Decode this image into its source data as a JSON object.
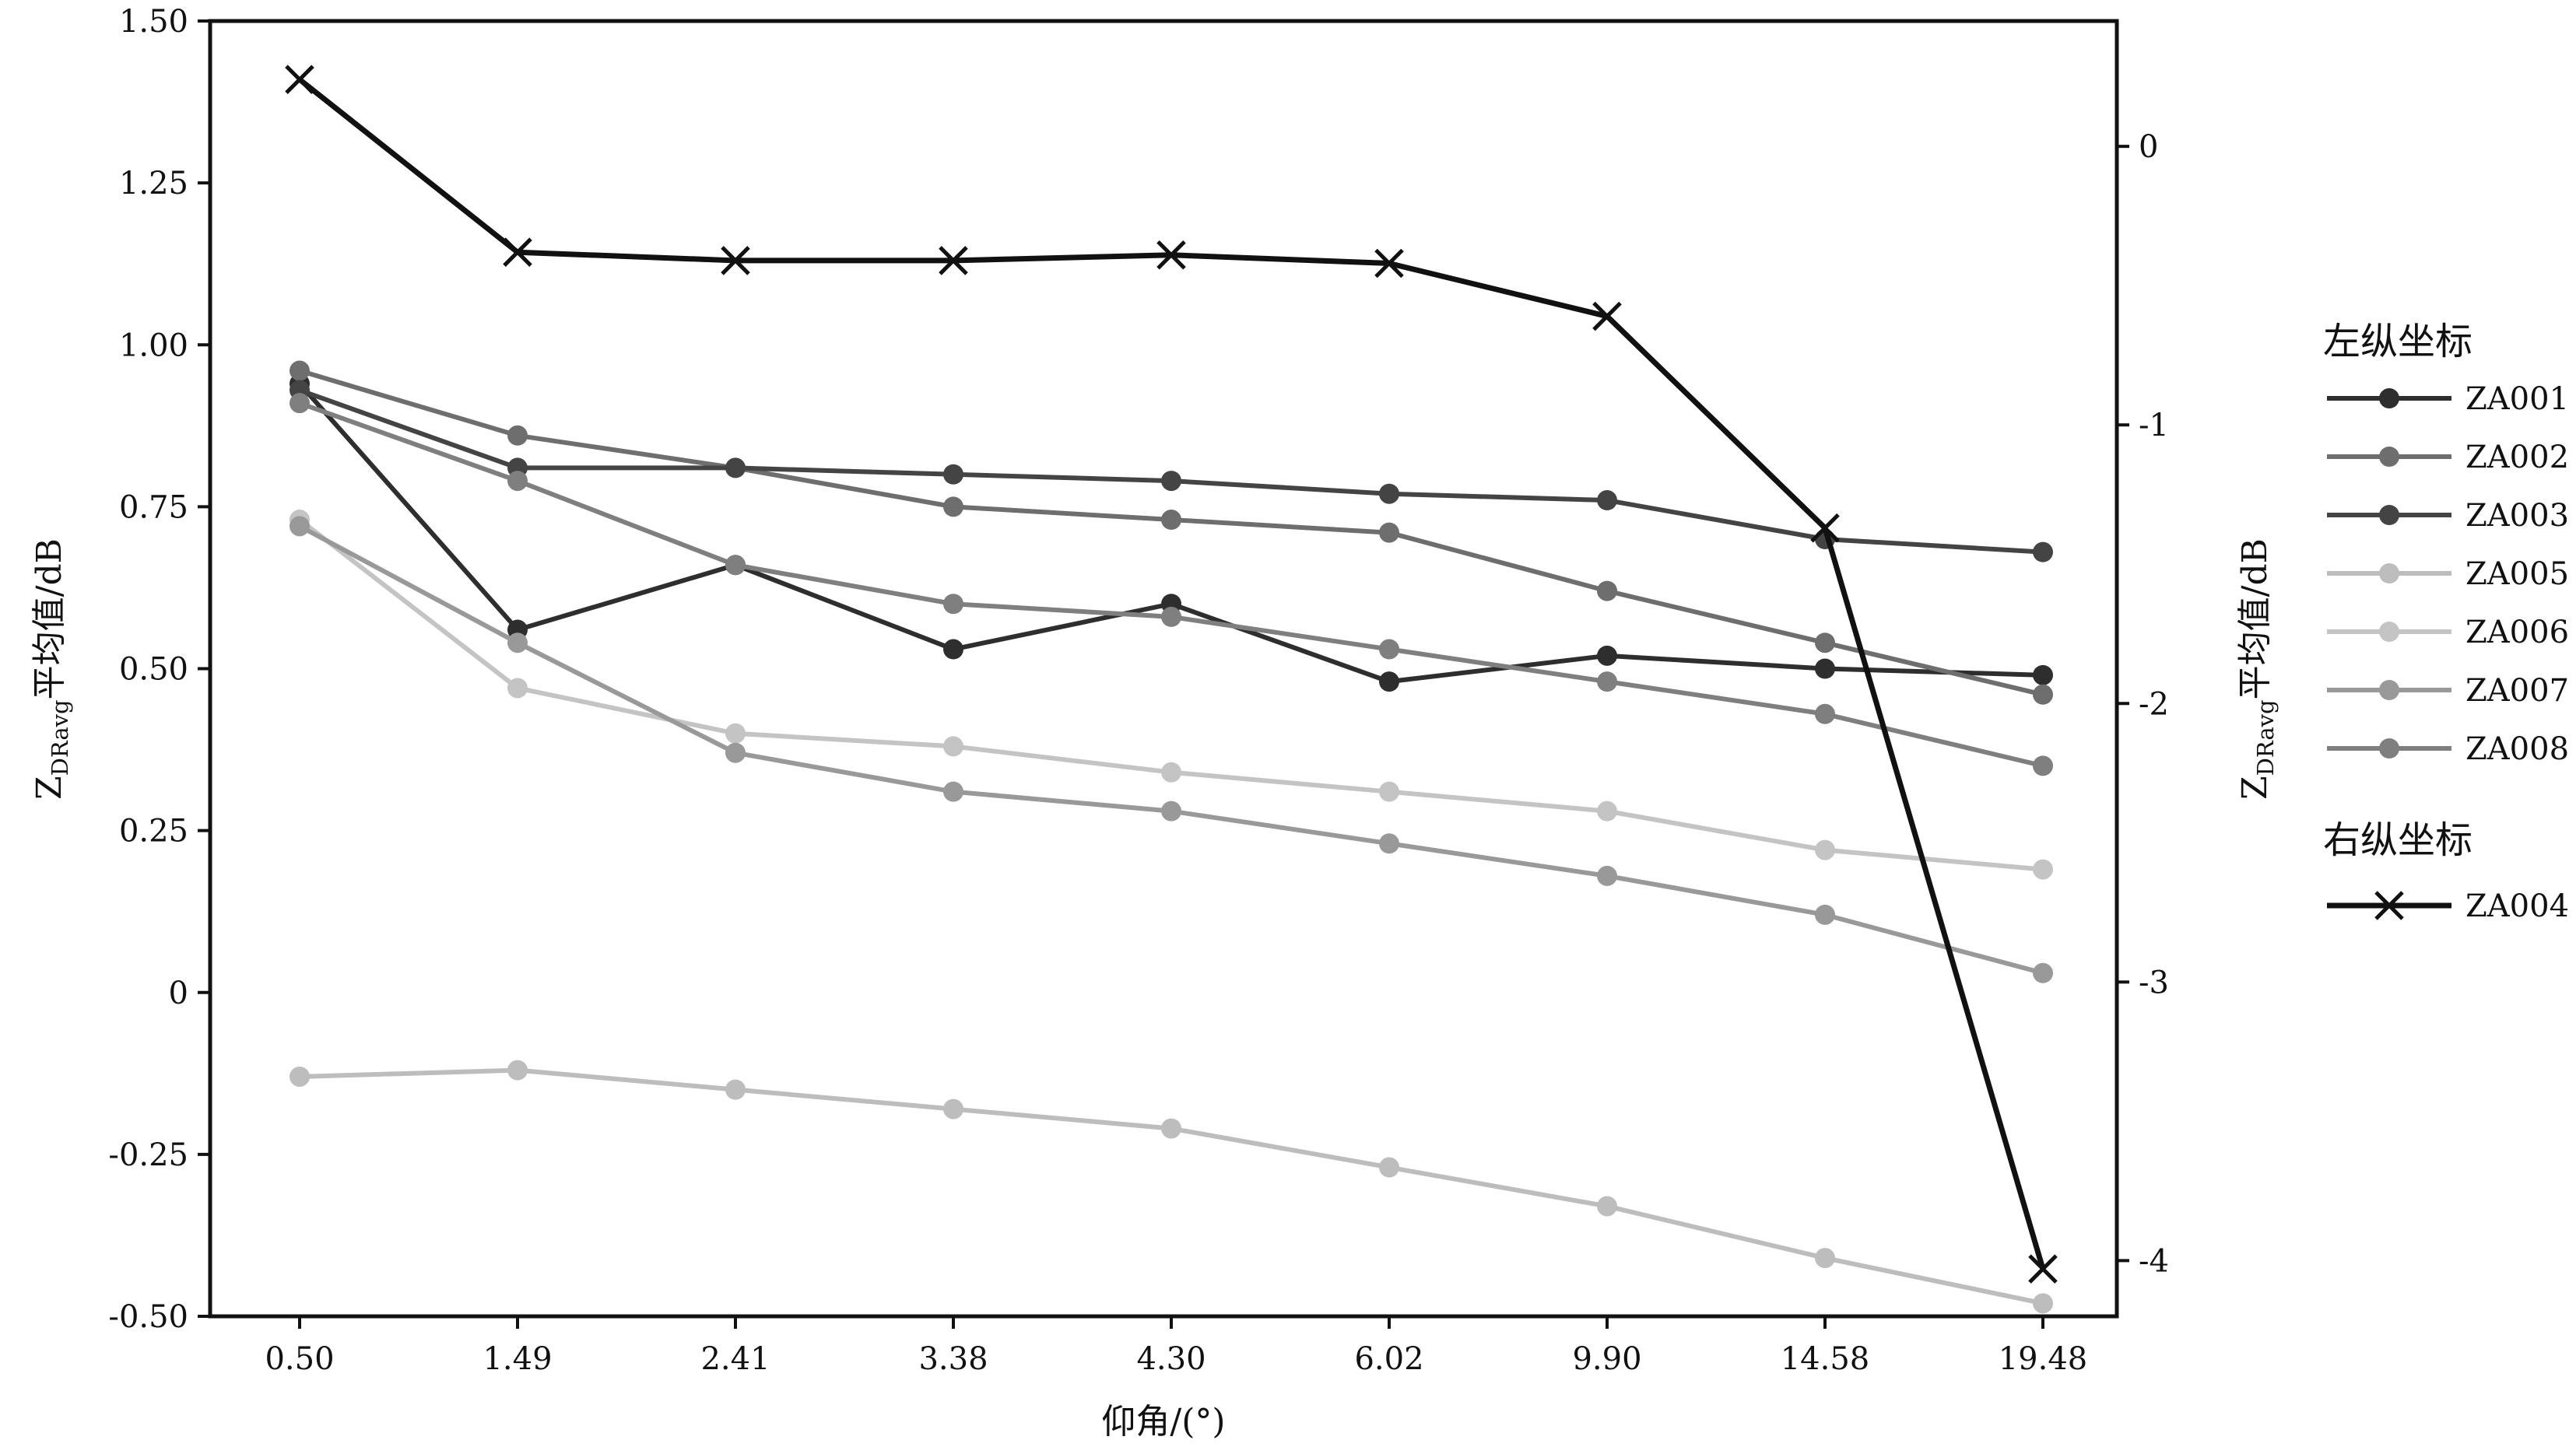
{
  "chart_data": {
    "type": "line",
    "categories": [
      "0.50",
      "1.49",
      "2.41",
      "3.38",
      "4.30",
      "6.02",
      "9.90",
      "14.58",
      "19.48"
    ],
    "xlabel": "仰角/(°)",
    "ylabel_left": {
      "main": "Z",
      "sub": "DRavg",
      "rest": "平均值/dB"
    },
    "ylabel_right": {
      "main": "Z",
      "sub": "DRavg",
      "rest": "平均值/dB"
    },
    "ylim_left": [
      -0.5,
      1.5
    ],
    "yticks_left": [
      {
        "v": 1.5,
        "t": "1.50"
      },
      {
        "v": 1.25,
        "t": "1.25"
      },
      {
        "v": 1.0,
        "t": "1.00"
      },
      {
        "v": 0.75,
        "t": "0.75"
      },
      {
        "v": 0.5,
        "t": "0.50"
      },
      {
        "v": 0.25,
        "t": "0.25"
      },
      {
        "v": 0,
        "t": "0"
      },
      {
        "v": -0.25,
        "t": "-0.25"
      },
      {
        "v": -0.5,
        "t": "-0.50"
      }
    ],
    "ylim_right": [
      -4.2,
      0.45
    ],
    "yticks_right": [
      {
        "v": 0,
        "t": "0"
      },
      {
        "v": -1,
        "t": "-1"
      },
      {
        "v": -2,
        "t": "-2"
      },
      {
        "v": -3,
        "t": "-3"
      },
      {
        "v": -4,
        "t": "-4"
      }
    ],
    "grid": false,
    "legend_position": "right",
    "legend": {
      "left_title": "左纵坐标",
      "right_title": "右纵坐标"
    },
    "series": [
      {
        "name": "ZA001",
        "axis": "left",
        "marker": "circle",
        "color": "#2e2e2e",
        "values": [
          0.94,
          0.56,
          0.66,
          0.53,
          0.6,
          0.48,
          0.52,
          0.5,
          0.49
        ]
      },
      {
        "name": "ZA002",
        "axis": "left",
        "marker": "circle",
        "color": "#6e6e6e",
        "values": [
          0.96,
          0.86,
          0.81,
          0.75,
          0.73,
          0.71,
          0.62,
          0.54,
          0.46
        ]
      },
      {
        "name": "ZA003",
        "axis": "left",
        "marker": "circle",
        "color": "#444444",
        "values": [
          0.93,
          0.81,
          0.81,
          0.8,
          0.79,
          0.77,
          0.76,
          0.7,
          0.68
        ]
      },
      {
        "name": "ZA005",
        "axis": "left",
        "marker": "circle",
        "color": "#bdbdbd",
        "values": [
          -0.13,
          -0.12,
          -0.15,
          -0.18,
          -0.21,
          -0.27,
          -0.33,
          -0.41,
          -0.48
        ]
      },
      {
        "name": "ZA006",
        "axis": "left",
        "marker": "circle",
        "color": "#c4c4c4",
        "values": [
          0.73,
          0.47,
          0.4,
          0.38,
          0.34,
          0.31,
          0.28,
          0.22,
          0.19
        ]
      },
      {
        "name": "ZA007",
        "axis": "left",
        "marker": "circle",
        "color": "#999999",
        "values": [
          0.72,
          0.54,
          0.37,
          0.31,
          0.28,
          0.23,
          0.18,
          0.12,
          0.03
        ]
      },
      {
        "name": "ZA008",
        "axis": "left",
        "marker": "circle",
        "color": "#7f7f7f",
        "values": [
          0.91,
          0.79,
          0.66,
          0.6,
          0.58,
          0.53,
          0.48,
          0.43,
          0.35
        ]
      },
      {
        "name": "ZA004",
        "axis": "right",
        "marker": "x",
        "color": "#111111",
        "values": [
          0.24,
          -0.38,
          -0.41,
          -0.41,
          -0.39,
          -0.42,
          -0.61,
          -1.37,
          -4.03
        ]
      }
    ]
  }
}
